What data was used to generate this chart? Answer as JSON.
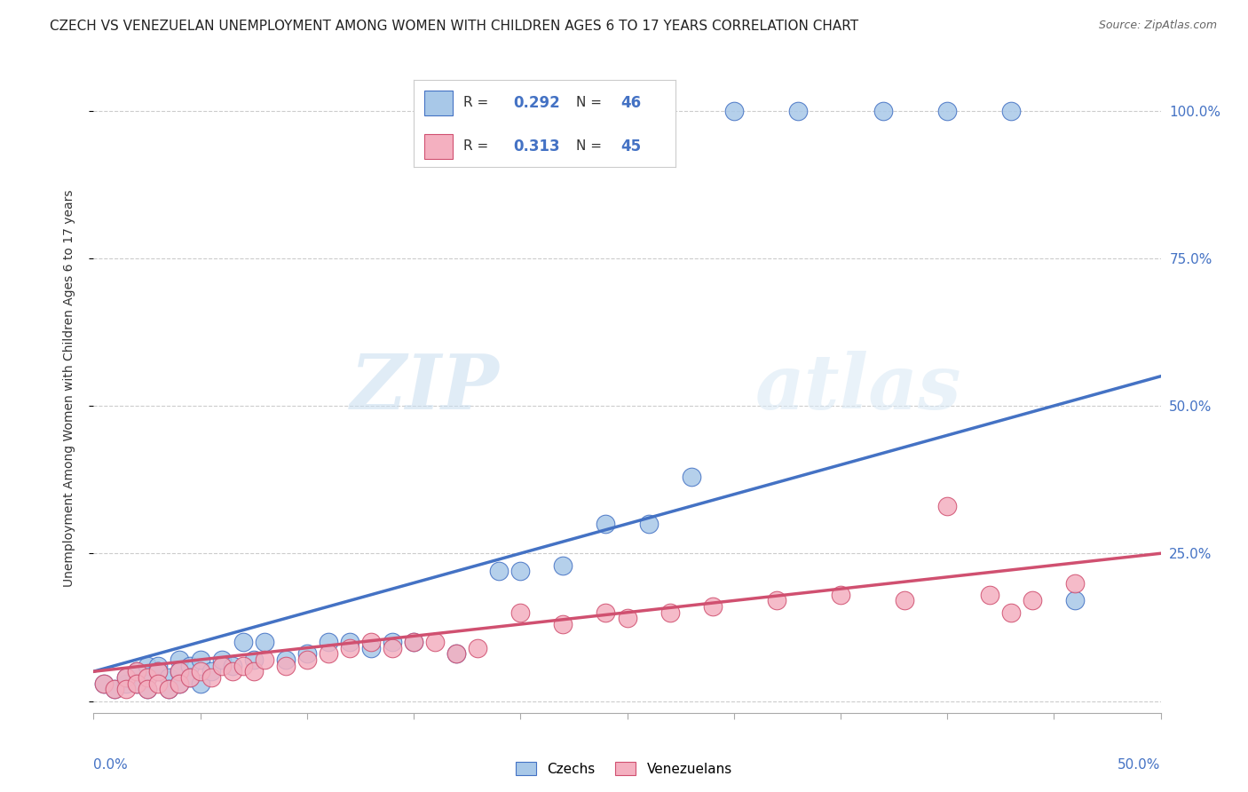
{
  "title": "CZECH VS VENEZUELAN UNEMPLOYMENT AMONG WOMEN WITH CHILDREN AGES 6 TO 17 YEARS CORRELATION CHART",
  "source": "Source: ZipAtlas.com",
  "ylabel": "Unemployment Among Women with Children Ages 6 to 17 years",
  "xmin": 0.0,
  "xmax": 0.5,
  "ymin": -0.02,
  "ymax": 1.08,
  "blue_R": 0.292,
  "blue_N": 46,
  "pink_R": 0.313,
  "pink_N": 45,
  "blue_color": "#a8c8e8",
  "blue_line_color": "#4472c4",
  "pink_color": "#f4b0c0",
  "pink_line_color": "#d05070",
  "legend_label_czech": "Czechs",
  "legend_label_venezuelan": "Venezuelans",
  "watermark_zip": "ZIP",
  "watermark_atlas": "atlas",
  "background_color": "#ffffff",
  "grid_color": "#cccccc",
  "title_fontsize": 11,
  "axis_label_fontsize": 10,
  "tick_fontsize": 11,
  "blue_scatter_x": [
    0.005,
    0.01,
    0.015,
    0.015,
    0.02,
    0.02,
    0.025,
    0.025,
    0.025,
    0.03,
    0.03,
    0.035,
    0.035,
    0.04,
    0.04,
    0.04,
    0.045,
    0.045,
    0.05,
    0.05,
    0.055,
    0.06,
    0.065,
    0.07,
    0.075,
    0.08,
    0.09,
    0.1,
    0.11,
    0.12,
    0.13,
    0.14,
    0.15,
    0.17,
    0.19,
    0.2,
    0.22,
    0.24,
    0.26,
    0.28,
    0.3,
    0.33,
    0.37,
    0.4,
    0.43,
    0.46
  ],
  "blue_scatter_y": [
    0.03,
    0.02,
    0.03,
    0.04,
    0.05,
    0.03,
    0.06,
    0.04,
    0.02,
    0.06,
    0.05,
    0.04,
    0.02,
    0.07,
    0.05,
    0.03,
    0.06,
    0.04,
    0.07,
    0.03,
    0.05,
    0.07,
    0.06,
    0.1,
    0.07,
    0.1,
    0.07,
    0.08,
    0.1,
    0.1,
    0.09,
    0.1,
    0.1,
    0.08,
    0.22,
    0.22,
    0.23,
    0.3,
    0.3,
    0.38,
    1.0,
    1.0,
    1.0,
    1.0,
    1.0,
    0.17
  ],
  "pink_scatter_x": [
    0.005,
    0.01,
    0.015,
    0.015,
    0.02,
    0.02,
    0.025,
    0.025,
    0.03,
    0.03,
    0.035,
    0.04,
    0.04,
    0.045,
    0.05,
    0.055,
    0.06,
    0.065,
    0.07,
    0.075,
    0.08,
    0.09,
    0.1,
    0.11,
    0.12,
    0.13,
    0.14,
    0.15,
    0.16,
    0.17,
    0.18,
    0.2,
    0.22,
    0.24,
    0.25,
    0.27,
    0.29,
    0.32,
    0.35,
    0.38,
    0.4,
    0.42,
    0.43,
    0.44,
    0.46
  ],
  "pink_scatter_y": [
    0.03,
    0.02,
    0.04,
    0.02,
    0.05,
    0.03,
    0.04,
    0.02,
    0.05,
    0.03,
    0.02,
    0.05,
    0.03,
    0.04,
    0.05,
    0.04,
    0.06,
    0.05,
    0.06,
    0.05,
    0.07,
    0.06,
    0.07,
    0.08,
    0.09,
    0.1,
    0.09,
    0.1,
    0.1,
    0.08,
    0.09,
    0.15,
    0.13,
    0.15,
    0.14,
    0.15,
    0.16,
    0.17,
    0.18,
    0.17,
    0.33,
    0.18,
    0.15,
    0.17,
    0.2
  ]
}
